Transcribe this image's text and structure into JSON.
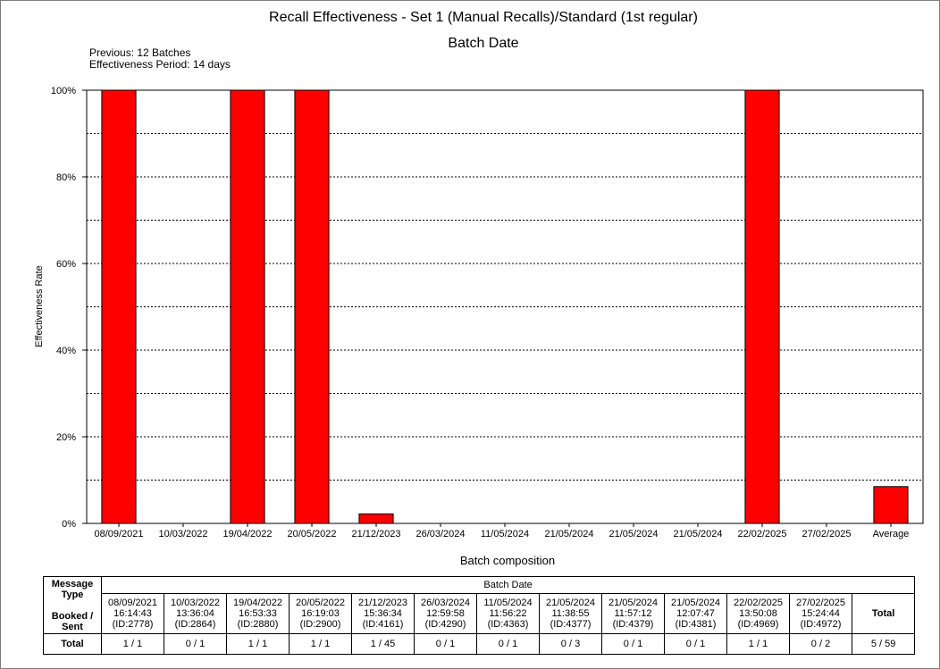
{
  "chart_data": {
    "type": "bar",
    "title": "Recall Effectiveness - Set 1 (Manual Recalls)/Standard (1st regular)",
    "subtitle": "Batch Date",
    "notes": [
      "Previous: 12 Batches",
      "Effectiveness Period: 14 days"
    ],
    "ylabel": "Effectiveness Rate",
    "xlabel": "",
    "ylim": [
      0,
      100
    ],
    "y_ticks": [
      0,
      20,
      40,
      60,
      80,
      100
    ],
    "y_tick_labels": [
      "0%",
      "20%",
      "40%",
      "60%",
      "80%",
      "100%"
    ],
    "grid": "dashed horizontal every 10%",
    "bar_color": "#ff0000",
    "categories": [
      "08/09/2021",
      "10/03/2022",
      "19/04/2022",
      "20/05/2022",
      "21/12/2023",
      "26/03/2024",
      "11/05/2024",
      "21/05/2024",
      "21/05/2024",
      "21/05/2024",
      "22/02/2025",
      "27/02/2025",
      "Average"
    ],
    "values": [
      100,
      0,
      100,
      100,
      2.2,
      0,
      0,
      0,
      0,
      0,
      100,
      0,
      8.5
    ]
  },
  "composition": {
    "title": "Batch composition",
    "type_header": "Message Type",
    "booked_sent_label": "Booked /\nSent",
    "batch_date_header": "Batch Date",
    "total_header": "Total",
    "row_label": "Total",
    "columns": [
      {
        "header": "08/09/2021\n16:14:43\n(ID:2778)",
        "value": "1 / 1"
      },
      {
        "header": "10/03/2022\n13:36:04\n(ID:2864)",
        "value": "0 / 1"
      },
      {
        "header": "19/04/2022\n16:53:33\n(ID:2880)",
        "value": "1 / 1"
      },
      {
        "header": "20/05/2022\n16:19:03\n(ID:2900)",
        "value": "1 / 1"
      },
      {
        "header": "21/12/2023\n15:36:34\n(ID:4161)",
        "value": "1 / 45"
      },
      {
        "header": "26/03/2024\n12:59:58\n(ID:4290)",
        "value": "0 / 1"
      },
      {
        "header": "11/05/2024\n11:56:22\n(ID:4363)",
        "value": "0 / 1"
      },
      {
        "header": "21/05/2024\n11:38:55\n(ID:4377)",
        "value": "0 / 3"
      },
      {
        "header": "21/05/2024\n11:57:12\n(ID:4379)",
        "value": "0 / 1"
      },
      {
        "header": "21/05/2024\n12:07:47\n(ID:4381)",
        "value": "0 / 1"
      },
      {
        "header": "22/02/2025\n13:50:08\n(ID:4969)",
        "value": "1 / 1"
      },
      {
        "header": "27/02/2025\n15:24:44\n(ID:4972)",
        "value": "0 / 2"
      }
    ],
    "total_value": "5 / 59"
  }
}
